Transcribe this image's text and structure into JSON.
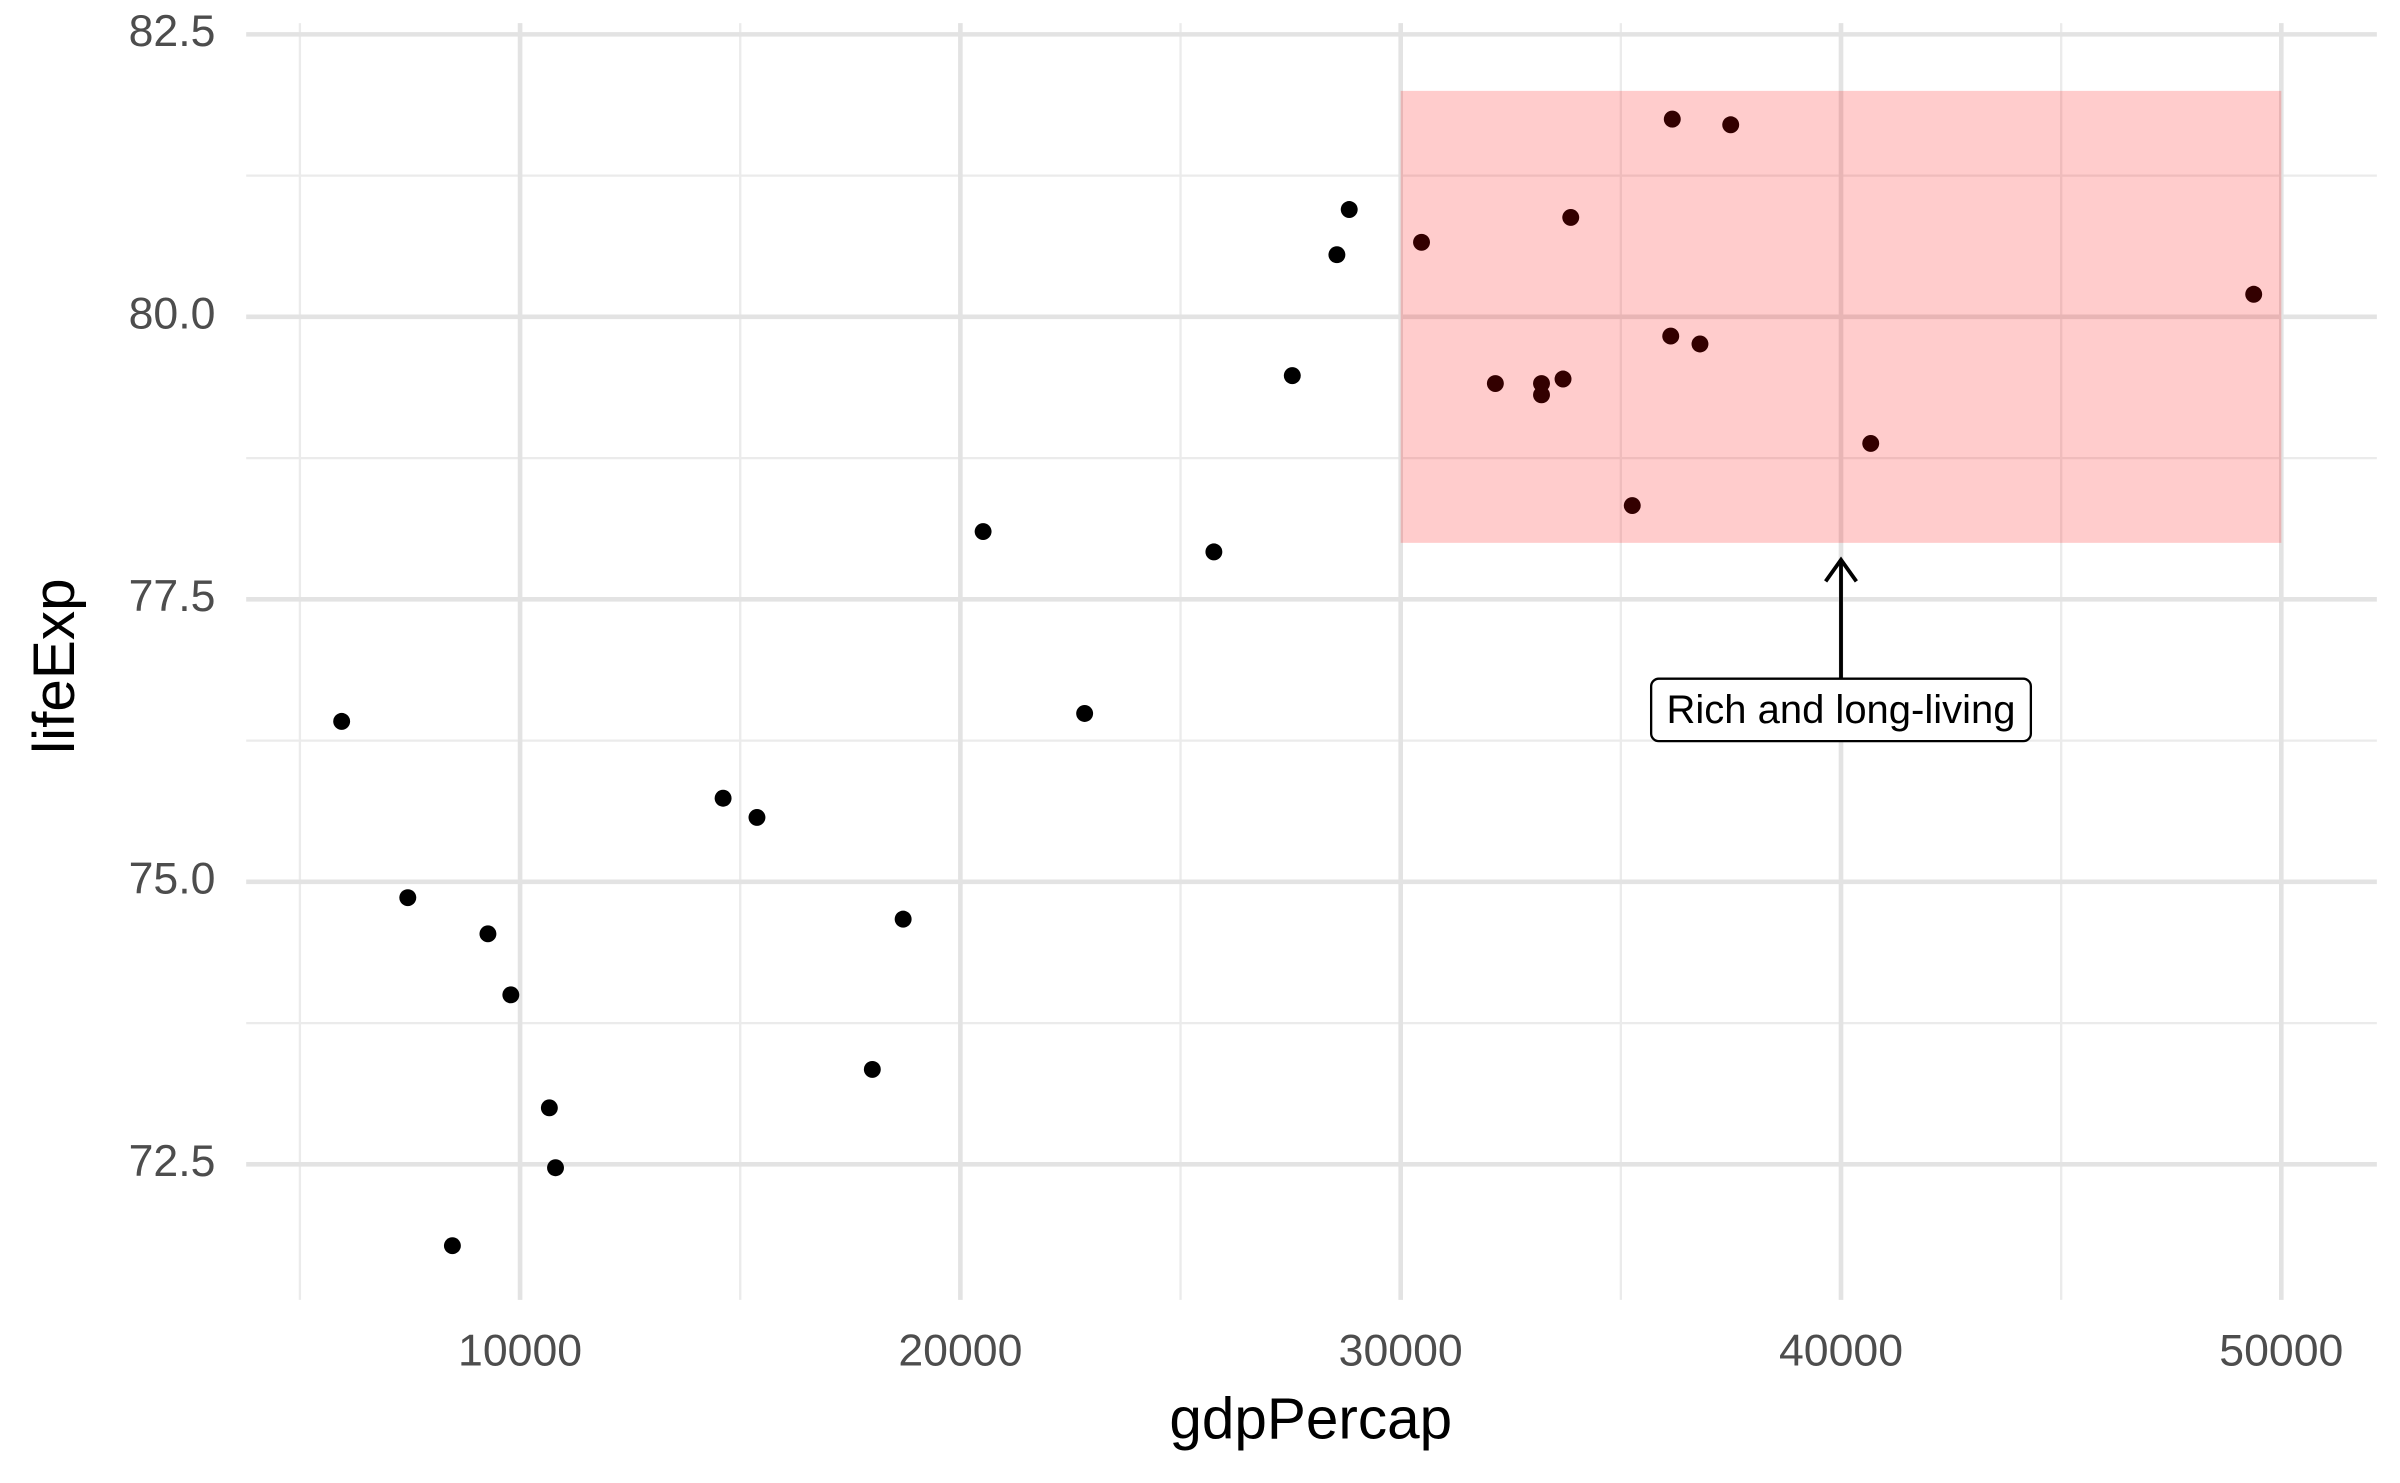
{
  "chart_data": {
    "type": "scatter",
    "x_label": "gdpPercap",
    "y_label": "lifeExp",
    "xlim": [
      3780,
      52170
    ],
    "ylim": [
      71.3,
      82.6
    ],
    "xticks": [
      10000,
      20000,
      30000,
      40000,
      50000
    ],
    "yticks": [
      {
        "value": 72.5,
        "label": "72.5"
      },
      {
        "value": 75,
        "label": "75.0"
      },
      {
        "value": 77.5,
        "label": "77.5"
      },
      {
        "value": 80,
        "label": "80.0"
      },
      {
        "value": 82.5,
        "label": "82.5"
      }
    ],
    "xminor": [
      5000,
      15000,
      25000,
      35000,
      45000
    ],
    "yminor": [
      73.75,
      76.25,
      78.75,
      81.25
    ],
    "grid": true,
    "color": "#000000",
    "x": [
      5948,
      7450,
      9270,
      9790,
      10665,
      10805,
      8463,
      14611,
      15380,
      18000,
      18700,
      20516,
      22822,
      25757,
      27538,
      28551,
      28831,
      30473,
      32150,
      33198,
      33198,
      33687,
      33862,
      35259,
      36133,
      36168,
      36797,
      37495,
      40675,
      49373
    ],
    "values": [
      76.42,
      74.86,
      74.54,
      74.0,
      73.0,
      72.47,
      71.78,
      75.74,
      75.57,
      73.34,
      74.67,
      78.1,
      76.49,
      77.92,
      79.48,
      80.55,
      80.95,
      80.66,
      79.41,
      79.41,
      79.31,
      79.45,
      80.88,
      78.33,
      79.83,
      81.75,
      79.76,
      81.7,
      78.88,
      80.2
    ],
    "highlight": {
      "xmin": 30000,
      "xmax": 50000,
      "ymin": 78,
      "ymax": 82,
      "color": "#ff0000"
    },
    "annotation": {
      "text": "Rich and long-living",
      "x": 40000,
      "y": 76.5,
      "arrow_from": 76.8,
      "arrow_to": 77.85
    }
  }
}
